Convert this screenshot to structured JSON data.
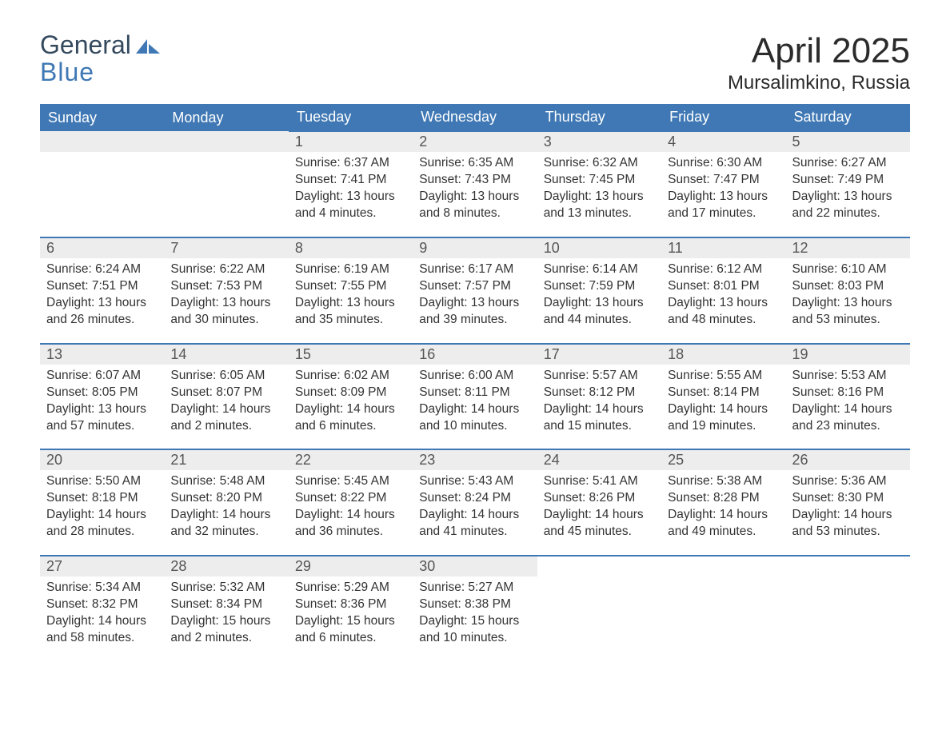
{
  "logo": {
    "line1": "General",
    "line2": "Blue"
  },
  "title": "April 2025",
  "location": "Mursalimkino, Russia",
  "colors": {
    "header_bg": "#3f78b4",
    "header_text": "#ffffff",
    "daynum_bg": "#ededed",
    "daynum_text": "#555555",
    "body_text": "#333333",
    "rule": "#3f78b4",
    "logo_blue": "#3f78b4",
    "logo_dark": "#34495e"
  },
  "day_headers": [
    "Sunday",
    "Monday",
    "Tuesday",
    "Wednesday",
    "Thursday",
    "Friday",
    "Saturday"
  ],
  "weeks": [
    [
      null,
      null,
      {
        "n": "1",
        "sr": "Sunrise: 6:37 AM",
        "ss": "Sunset: 7:41 PM",
        "d1": "Daylight: 13 hours",
        "d2": "and 4 minutes."
      },
      {
        "n": "2",
        "sr": "Sunrise: 6:35 AM",
        "ss": "Sunset: 7:43 PM",
        "d1": "Daylight: 13 hours",
        "d2": "and 8 minutes."
      },
      {
        "n": "3",
        "sr": "Sunrise: 6:32 AM",
        "ss": "Sunset: 7:45 PM",
        "d1": "Daylight: 13 hours",
        "d2": "and 13 minutes."
      },
      {
        "n": "4",
        "sr": "Sunrise: 6:30 AM",
        "ss": "Sunset: 7:47 PM",
        "d1": "Daylight: 13 hours",
        "d2": "and 17 minutes."
      },
      {
        "n": "5",
        "sr": "Sunrise: 6:27 AM",
        "ss": "Sunset: 7:49 PM",
        "d1": "Daylight: 13 hours",
        "d2": "and 22 minutes."
      }
    ],
    [
      {
        "n": "6",
        "sr": "Sunrise: 6:24 AM",
        "ss": "Sunset: 7:51 PM",
        "d1": "Daylight: 13 hours",
        "d2": "and 26 minutes."
      },
      {
        "n": "7",
        "sr": "Sunrise: 6:22 AM",
        "ss": "Sunset: 7:53 PM",
        "d1": "Daylight: 13 hours",
        "d2": "and 30 minutes."
      },
      {
        "n": "8",
        "sr": "Sunrise: 6:19 AM",
        "ss": "Sunset: 7:55 PM",
        "d1": "Daylight: 13 hours",
        "d2": "and 35 minutes."
      },
      {
        "n": "9",
        "sr": "Sunrise: 6:17 AM",
        "ss": "Sunset: 7:57 PM",
        "d1": "Daylight: 13 hours",
        "d2": "and 39 minutes."
      },
      {
        "n": "10",
        "sr": "Sunrise: 6:14 AM",
        "ss": "Sunset: 7:59 PM",
        "d1": "Daylight: 13 hours",
        "d2": "and 44 minutes."
      },
      {
        "n": "11",
        "sr": "Sunrise: 6:12 AM",
        "ss": "Sunset: 8:01 PM",
        "d1": "Daylight: 13 hours",
        "d2": "and 48 minutes."
      },
      {
        "n": "12",
        "sr": "Sunrise: 6:10 AM",
        "ss": "Sunset: 8:03 PM",
        "d1": "Daylight: 13 hours",
        "d2": "and 53 minutes."
      }
    ],
    [
      {
        "n": "13",
        "sr": "Sunrise: 6:07 AM",
        "ss": "Sunset: 8:05 PM",
        "d1": "Daylight: 13 hours",
        "d2": "and 57 minutes."
      },
      {
        "n": "14",
        "sr": "Sunrise: 6:05 AM",
        "ss": "Sunset: 8:07 PM",
        "d1": "Daylight: 14 hours",
        "d2": "and 2 minutes."
      },
      {
        "n": "15",
        "sr": "Sunrise: 6:02 AM",
        "ss": "Sunset: 8:09 PM",
        "d1": "Daylight: 14 hours",
        "d2": "and 6 minutes."
      },
      {
        "n": "16",
        "sr": "Sunrise: 6:00 AM",
        "ss": "Sunset: 8:11 PM",
        "d1": "Daylight: 14 hours",
        "d2": "and 10 minutes."
      },
      {
        "n": "17",
        "sr": "Sunrise: 5:57 AM",
        "ss": "Sunset: 8:12 PM",
        "d1": "Daylight: 14 hours",
        "d2": "and 15 minutes."
      },
      {
        "n": "18",
        "sr": "Sunrise: 5:55 AM",
        "ss": "Sunset: 8:14 PM",
        "d1": "Daylight: 14 hours",
        "d2": "and 19 minutes."
      },
      {
        "n": "19",
        "sr": "Sunrise: 5:53 AM",
        "ss": "Sunset: 8:16 PM",
        "d1": "Daylight: 14 hours",
        "d2": "and 23 minutes."
      }
    ],
    [
      {
        "n": "20",
        "sr": "Sunrise: 5:50 AM",
        "ss": "Sunset: 8:18 PM",
        "d1": "Daylight: 14 hours",
        "d2": "and 28 minutes."
      },
      {
        "n": "21",
        "sr": "Sunrise: 5:48 AM",
        "ss": "Sunset: 8:20 PM",
        "d1": "Daylight: 14 hours",
        "d2": "and 32 minutes."
      },
      {
        "n": "22",
        "sr": "Sunrise: 5:45 AM",
        "ss": "Sunset: 8:22 PM",
        "d1": "Daylight: 14 hours",
        "d2": "and 36 minutes."
      },
      {
        "n": "23",
        "sr": "Sunrise: 5:43 AM",
        "ss": "Sunset: 8:24 PM",
        "d1": "Daylight: 14 hours",
        "d2": "and 41 minutes."
      },
      {
        "n": "24",
        "sr": "Sunrise: 5:41 AM",
        "ss": "Sunset: 8:26 PM",
        "d1": "Daylight: 14 hours",
        "d2": "and 45 minutes."
      },
      {
        "n": "25",
        "sr": "Sunrise: 5:38 AM",
        "ss": "Sunset: 8:28 PM",
        "d1": "Daylight: 14 hours",
        "d2": "and 49 minutes."
      },
      {
        "n": "26",
        "sr": "Sunrise: 5:36 AM",
        "ss": "Sunset: 8:30 PM",
        "d1": "Daylight: 14 hours",
        "d2": "and 53 minutes."
      }
    ],
    [
      {
        "n": "27",
        "sr": "Sunrise: 5:34 AM",
        "ss": "Sunset: 8:32 PM",
        "d1": "Daylight: 14 hours",
        "d2": "and 58 minutes."
      },
      {
        "n": "28",
        "sr": "Sunrise: 5:32 AM",
        "ss": "Sunset: 8:34 PM",
        "d1": "Daylight: 15 hours",
        "d2": "and 2 minutes."
      },
      {
        "n": "29",
        "sr": "Sunrise: 5:29 AM",
        "ss": "Sunset: 8:36 PM",
        "d1": "Daylight: 15 hours",
        "d2": "and 6 minutes."
      },
      {
        "n": "30",
        "sr": "Sunrise: 5:27 AM",
        "ss": "Sunset: 8:38 PM",
        "d1": "Daylight: 15 hours",
        "d2": "and 10 minutes."
      },
      null,
      null,
      null
    ]
  ]
}
